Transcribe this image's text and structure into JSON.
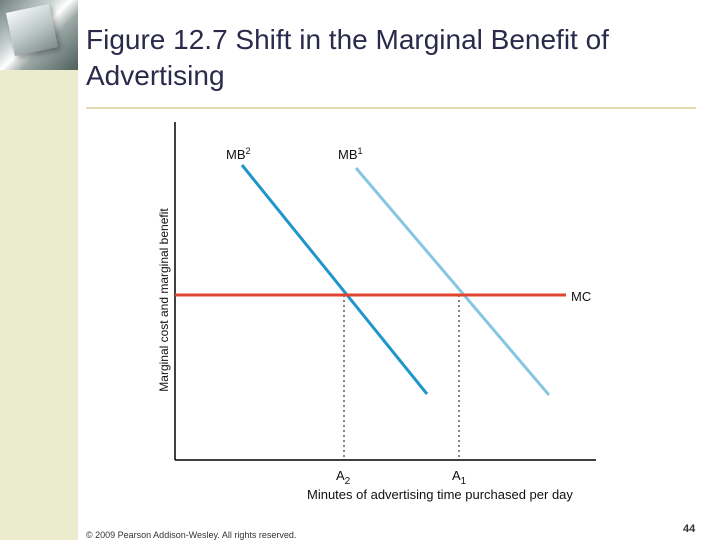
{
  "slide": {
    "title": "Figure 12.7 Shift in the Marginal Benefit of Advertising",
    "copyright": "© 2009 Pearson Addison-Wesley. All rights reserved.",
    "page_number": "44"
  },
  "diagram": {
    "y_axis_label": "Marginal cost and marginal benefit",
    "x_axis_label": "Minutes of advertising time purchased per day",
    "lines": {
      "mb2": {
        "label": "MB",
        "sup": "2",
        "color": "#1f96c9"
      },
      "mb1": {
        "label": "MB",
        "sup": "1",
        "color": "#86c6e2"
      },
      "mc": {
        "label": "MC",
        "color": "#e04530"
      }
    },
    "points": {
      "a2": {
        "label": "A",
        "sub": "2"
      },
      "a1": {
        "label": "A",
        "sub": "1"
      }
    }
  }
}
